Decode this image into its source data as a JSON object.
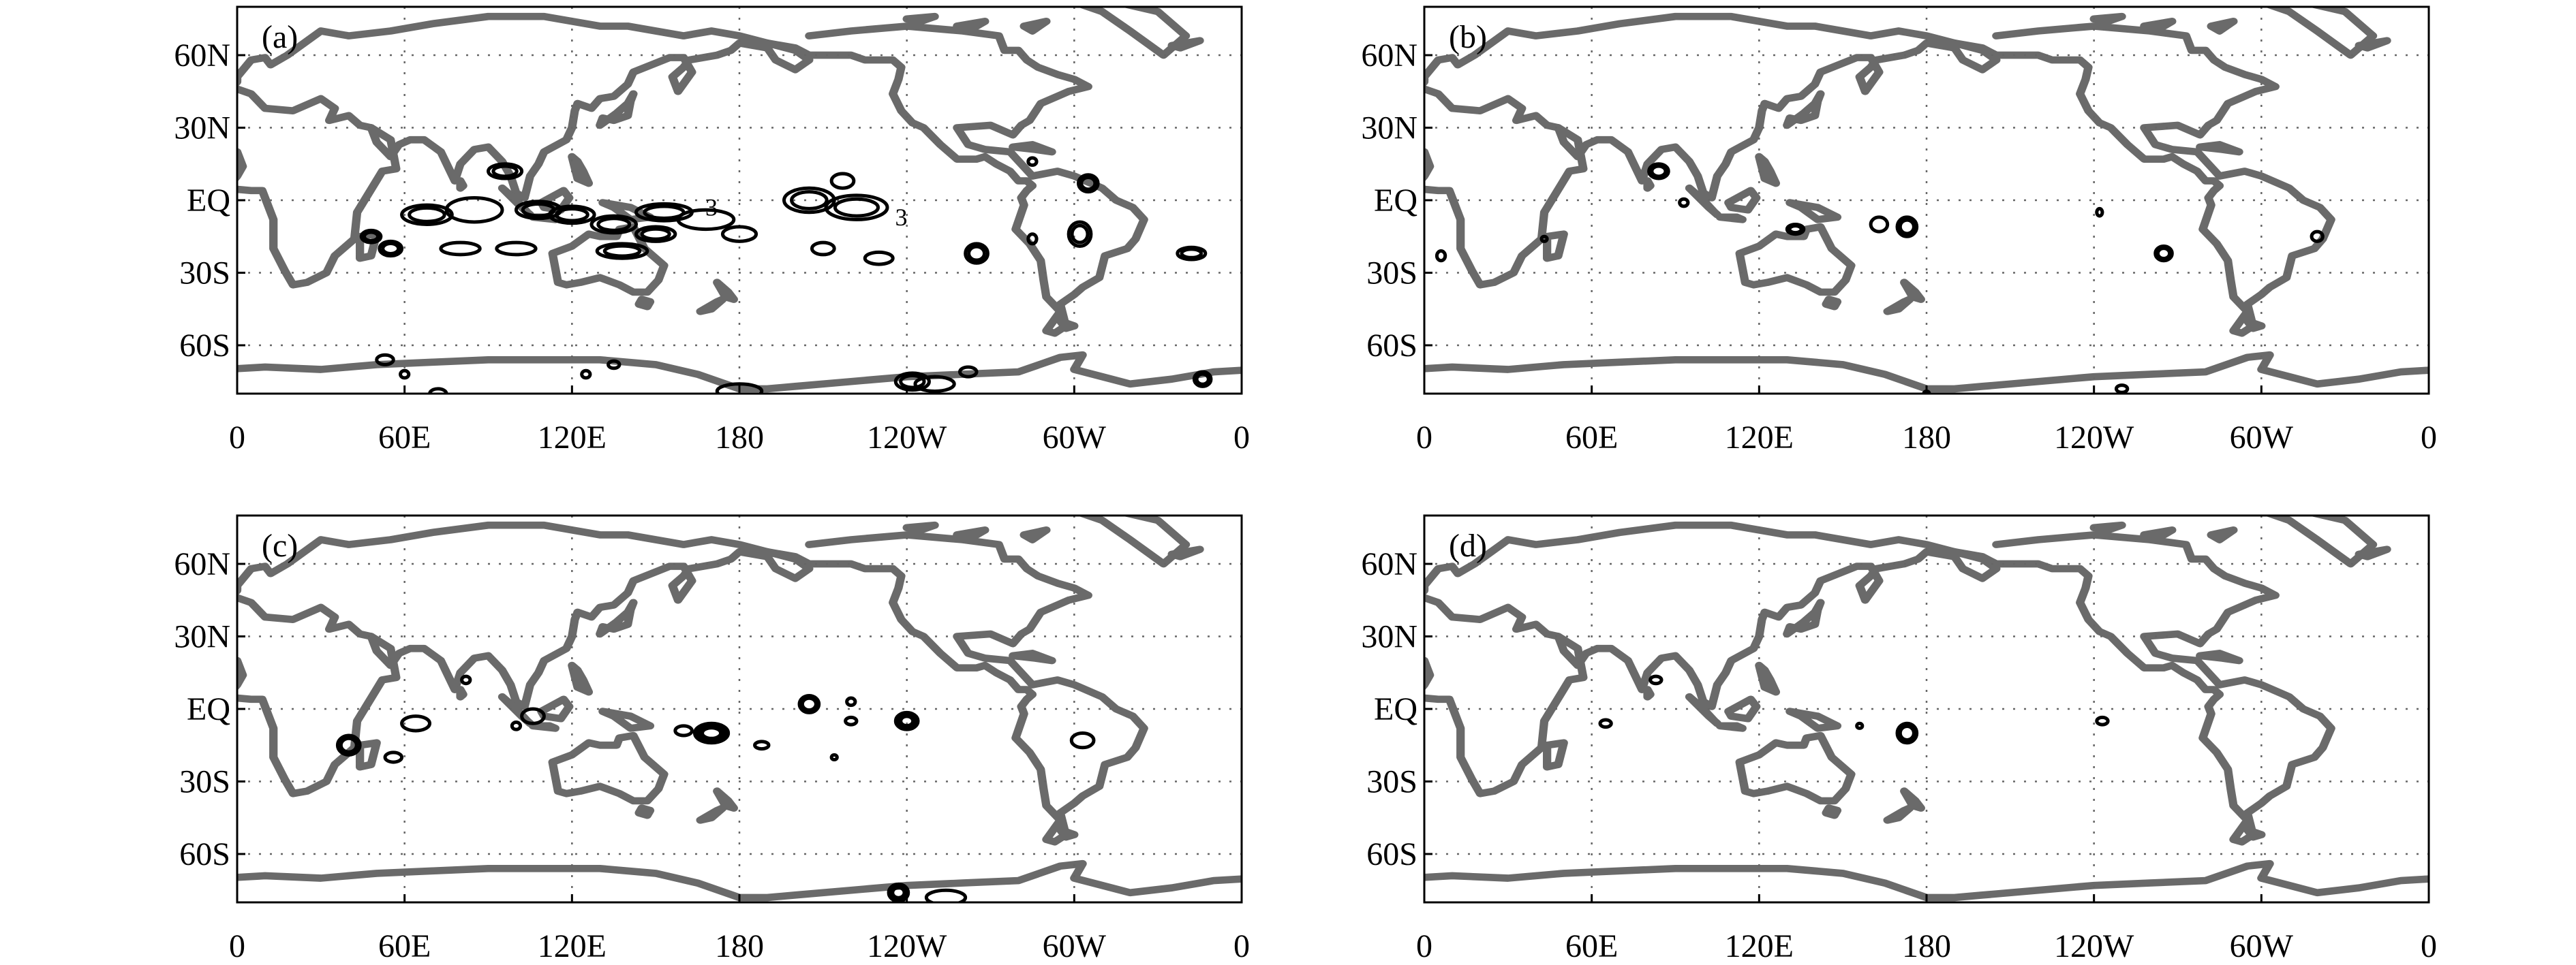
{
  "figure": {
    "lon_ticks": [
      "0",
      "60E",
      "120E",
      "180",
      "120W",
      "60W",
      "0"
    ],
    "lat_ticks": [
      "60N",
      "30N",
      "EQ",
      "30S",
      "60S"
    ],
    "lon_values": [
      0,
      60,
      120,
      180,
      240,
      300,
      360
    ],
    "lat_values": [
      60,
      30,
      0,
      -30,
      -60
    ],
    "lon_range": [
      0,
      360
    ],
    "lat_range": [
      -80,
      80
    ],
    "grid": true,
    "colors": {
      "coast": "#6a6a6a",
      "contour": "#000000",
      "grid": "#666666"
    }
  },
  "panels": [
    {
      "label": "(a)",
      "contour_labels": [
        {
          "text": "3",
          "lon": 170,
          "lat": -3
        },
        {
          "text": "3",
          "lon": 238,
          "lat": -7
        }
      ],
      "features": [
        {
          "lon": 48,
          "lat": -15,
          "rx": 3.5,
          "ry": 2.5,
          "rings": 2
        },
        {
          "lon": 55,
          "lat": -20,
          "rx": 4,
          "ry": 3,
          "rings": 2
        },
        {
          "lon": 68,
          "lat": -6,
          "rx": 9,
          "ry": 4,
          "rings": 2
        },
        {
          "lon": 85,
          "lat": -4,
          "rx": 10,
          "ry": 5,
          "rings": 1
        },
        {
          "lon": 80,
          "lat": -20,
          "rx": 7,
          "ry": 2.5,
          "rings": 1
        },
        {
          "lon": 96,
          "lat": 12,
          "rx": 6,
          "ry": 3,
          "rings": 2
        },
        {
          "lon": 100,
          "lat": -20,
          "rx": 7,
          "ry": 2.5,
          "rings": 1
        },
        {
          "lon": 108,
          "lat": -4,
          "rx": 8,
          "ry": 3.5,
          "rings": 2
        },
        {
          "lon": 120,
          "lat": -6,
          "rx": 8,
          "ry": 3.5,
          "rings": 2
        },
        {
          "lon": 135,
          "lat": -10,
          "rx": 8,
          "ry": 3.5,
          "rings": 2
        },
        {
          "lon": 150,
          "lat": -14,
          "rx": 7,
          "ry": 3,
          "rings": 2
        },
        {
          "lon": 153,
          "lat": -5,
          "rx": 10,
          "ry": 3.5,
          "rings": 2
        },
        {
          "lon": 168,
          "lat": -8,
          "rx": 10,
          "ry": 4,
          "rings": 1
        },
        {
          "lon": 138,
          "lat": -21,
          "rx": 9,
          "ry": 3,
          "rings": 2
        },
        {
          "lon": 180,
          "lat": -14,
          "rx": 6,
          "ry": 3,
          "rings": 1
        },
        {
          "lon": 205,
          "lat": 0,
          "rx": 9,
          "ry": 5,
          "rings": 2
        },
        {
          "lon": 222,
          "lat": -3,
          "rx": 11,
          "ry": 5,
          "rings": 2
        },
        {
          "lon": 217,
          "lat": 8,
          "rx": 4,
          "ry": 3,
          "rings": 1
        },
        {
          "lon": 210,
          "lat": -20,
          "rx": 4,
          "ry": 2.5,
          "rings": 1
        },
        {
          "lon": 230,
          "lat": -24,
          "rx": 5,
          "ry": 2.5,
          "rings": 1
        },
        {
          "lon": 265,
          "lat": -22,
          "rx": 4,
          "ry": 4,
          "rings": 2
        },
        {
          "lon": 285,
          "lat": -16,
          "rx": 1.5,
          "ry": 2,
          "rings": 1
        },
        {
          "lon": 285,
          "lat": 16,
          "rx": 1.5,
          "ry": 1.5,
          "rings": 1
        },
        {
          "lon": 305,
          "lat": 7,
          "rx": 3.5,
          "ry": 3.5,
          "rings": 2
        },
        {
          "lon": 302,
          "lat": -14,
          "rx": 4,
          "ry": 5,
          "rings": 2
        },
        {
          "lon": 342,
          "lat": -22,
          "rx": 5,
          "ry": 2.5,
          "rings": 2
        },
        {
          "lon": 53,
          "lat": -66,
          "rx": 3,
          "ry": 2,
          "rings": 1
        },
        {
          "lon": 60,
          "lat": -72,
          "rx": 1.5,
          "ry": 1.5,
          "rings": 1
        },
        {
          "lon": 72,
          "lat": -80,
          "rx": 3,
          "ry": 2,
          "rings": 1
        },
        {
          "lon": 125,
          "lat": -72,
          "rx": 1.5,
          "ry": 1.5,
          "rings": 1
        },
        {
          "lon": 135,
          "lat": -68,
          "rx": 2,
          "ry": 1.5,
          "rings": 1
        },
        {
          "lon": 180,
          "lat": -79,
          "rx": 8,
          "ry": 3,
          "rings": 1
        },
        {
          "lon": 242,
          "lat": -75,
          "rx": 6,
          "ry": 3.5,
          "rings": 2
        },
        {
          "lon": 250,
          "lat": -76,
          "rx": 7,
          "ry": 3,
          "rings": 1
        },
        {
          "lon": 262,
          "lat": -71,
          "rx": 3,
          "ry": 2,
          "rings": 1
        },
        {
          "lon": 346,
          "lat": -74,
          "rx": 3,
          "ry": 3,
          "rings": 2
        }
      ]
    },
    {
      "label": "(b)",
      "contour_labels": [],
      "features": [
        {
          "lon": 84,
          "lat": 12,
          "rx": 3.5,
          "ry": 3,
          "rings": 2
        },
        {
          "lon": 93,
          "lat": -1,
          "rx": 1.5,
          "ry": 1.5,
          "rings": 1
        },
        {
          "lon": 133,
          "lat": -12,
          "rx": 3,
          "ry": 2,
          "rings": 2
        },
        {
          "lon": 163,
          "lat": -10,
          "rx": 3,
          "ry": 3,
          "rings": 1
        },
        {
          "lon": 173,
          "lat": -11,
          "rx": 3.5,
          "ry": 4,
          "rings": 2
        },
        {
          "lon": 6,
          "lat": -23,
          "rx": 1.5,
          "ry": 2,
          "rings": 1
        },
        {
          "lon": 43,
          "lat": -16,
          "rx": 1,
          "ry": 1,
          "rings": 1
        },
        {
          "lon": 242,
          "lat": -5,
          "rx": 1,
          "ry": 1.5,
          "rings": 1
        },
        {
          "lon": 265,
          "lat": -22,
          "rx": 3,
          "ry": 3,
          "rings": 2
        },
        {
          "lon": 320,
          "lat": -15,
          "rx": 2,
          "ry": 2,
          "rings": 1
        },
        {
          "lon": 180,
          "lat": -80,
          "rx": 1,
          "ry": 1,
          "rings": 1
        },
        {
          "lon": 250,
          "lat": -78,
          "rx": 2,
          "ry": 1.5,
          "rings": 1
        }
      ]
    },
    {
      "label": "(c)",
      "contour_labels": [],
      "features": [
        {
          "lon": 40,
          "lat": -15,
          "rx": 4,
          "ry": 4,
          "rings": 2
        },
        {
          "lon": 56,
          "lat": -20,
          "rx": 3,
          "ry": 2,
          "rings": 1
        },
        {
          "lon": 64,
          "lat": -6,
          "rx": 5,
          "ry": 3,
          "rings": 1
        },
        {
          "lon": 82,
          "lat": 12,
          "rx": 1.5,
          "ry": 1.5,
          "rings": 1
        },
        {
          "lon": 106,
          "lat": -3,
          "rx": 4,
          "ry": 3,
          "rings": 1
        },
        {
          "lon": 100,
          "lat": -7,
          "rx": 1.5,
          "ry": 1.5,
          "rings": 1
        },
        {
          "lon": 170,
          "lat": -10,
          "rx": 6,
          "ry": 4,
          "rings": 4
        },
        {
          "lon": 160,
          "lat": -9,
          "rx": 3,
          "ry": 2,
          "rings": 1
        },
        {
          "lon": 188,
          "lat": -15,
          "rx": 2.5,
          "ry": 1.5,
          "rings": 1
        },
        {
          "lon": 205,
          "lat": 2,
          "rx": 3.5,
          "ry": 3.5,
          "rings": 2
        },
        {
          "lon": 220,
          "lat": 3,
          "rx": 1.5,
          "ry": 1.5,
          "rings": 1
        },
        {
          "lon": 220,
          "lat": -5,
          "rx": 2,
          "ry": 1.5,
          "rings": 1
        },
        {
          "lon": 214,
          "lat": -20,
          "rx": 1,
          "ry": 1,
          "rings": 1
        },
        {
          "lon": 240,
          "lat": -5,
          "rx": 4,
          "ry": 3.5,
          "rings": 4
        },
        {
          "lon": 303,
          "lat": -13,
          "rx": 4,
          "ry": 3,
          "rings": 1
        },
        {
          "lon": 237,
          "lat": -76,
          "rx": 3.5,
          "ry": 3.5,
          "rings": 3
        },
        {
          "lon": 254,
          "lat": -78,
          "rx": 7,
          "ry": 3,
          "rings": 1
        }
      ]
    },
    {
      "label": "(d)",
      "contour_labels": [],
      "features": [
        {
          "lon": 65,
          "lat": -6,
          "rx": 2,
          "ry": 1.5,
          "rings": 1
        },
        {
          "lon": 83,
          "lat": 12,
          "rx": 2,
          "ry": 1.5,
          "rings": 1
        },
        {
          "lon": 173,
          "lat": -10,
          "rx": 3.5,
          "ry": 4,
          "rings": 2
        },
        {
          "lon": 156,
          "lat": -7,
          "rx": 1,
          "ry": 1,
          "rings": 1
        },
        {
          "lon": 243,
          "lat": -5,
          "rx": 2,
          "ry": 1.5,
          "rings": 1
        }
      ]
    }
  ]
}
